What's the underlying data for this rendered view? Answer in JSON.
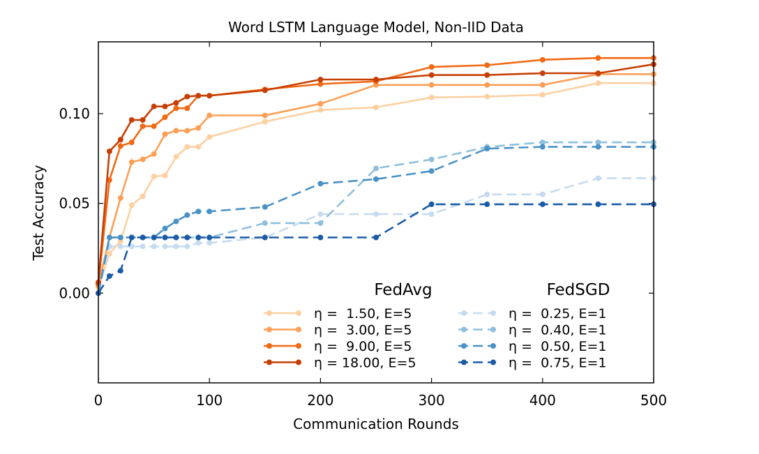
{
  "chart_data": {
    "type": "line",
    "title": "Word LSTM Language Model, Non-IID Data",
    "xlabel": "Communication Rounds",
    "ylabel": "Test Accuracy",
    "xlim": [
      0,
      500
    ],
    "ylim": [
      -0.05,
      0.14
    ],
    "xticks": [
      0,
      100,
      200,
      300,
      400,
      500
    ],
    "xtick_labels": [
      "0",
      "100",
      "200",
      "300",
      "400",
      "500"
    ],
    "yticks": [
      0.0,
      0.05,
      0.1
    ],
    "ytick_labels": [
      "0.00",
      "0.05",
      "0.10"
    ],
    "grid": false,
    "legend_groups": [
      {
        "heading": "FedAvg",
        "series": [
          {
            "name": "η =  1.50, E=5",
            "color": "#fdd0a2",
            "dashed": false,
            "points": [
              [
                0,
                0.003
              ],
              [
                10,
                0.022
              ],
              [
                20,
                0.029
              ],
              [
                30,
                0.049
              ],
              [
                40,
                0.054
              ],
              [
                50,
                0.065
              ],
              [
                60,
                0.0655
              ],
              [
                70,
                0.076
              ],
              [
                80,
                0.0815
              ],
              [
                90,
                0.0815
              ],
              [
                100,
                0.087
              ],
              [
                150,
                0.0955
              ],
              [
                200,
                0.102
              ],
              [
                250,
                0.1035
              ],
              [
                300,
                0.109
              ],
              [
                350,
                0.1095
              ],
              [
                400,
                0.1105
              ],
              [
                450,
                0.117
              ],
              [
                500,
                0.117
              ]
            ]
          },
          {
            "name": "η =  3.00, E=5",
            "color": "#fd9f56",
            "dashed": false,
            "points": [
              [
                0,
                0.004
              ],
              [
                10,
                0.031
              ],
              [
                20,
                0.053
              ],
              [
                30,
                0.073
              ],
              [
                40,
                0.0745
              ],
              [
                50,
                0.0775
              ],
              [
                60,
                0.0885
              ],
              [
                70,
                0.0905
              ],
              [
                80,
                0.0905
              ],
              [
                90,
                0.092
              ],
              [
                100,
                0.099
              ],
              [
                150,
                0.099
              ],
              [
                200,
                0.1055
              ],
              [
                250,
                0.116
              ],
              [
                300,
                0.116
              ],
              [
                350,
                0.116
              ],
              [
                400,
                0.116
              ],
              [
                450,
                0.122
              ],
              [
                500,
                0.122
              ]
            ]
          },
          {
            "name": "η =  9.00, E=5",
            "color": "#f16913",
            "dashed": false,
            "points": [
              [
                0,
                0.005
              ],
              [
                10,
                0.063
              ],
              [
                20,
                0.082
              ],
              [
                30,
                0.084
              ],
              [
                40,
                0.093
              ],
              [
                50,
                0.093
              ],
              [
                60,
                0.098
              ],
              [
                70,
                0.103
              ],
              [
                80,
                0.103
              ],
              [
                90,
                0.11
              ],
              [
                100,
                0.11
              ],
              [
                150,
                0.1135
              ],
              [
                200,
                0.1165
              ],
              [
                250,
                0.118
              ],
              [
                300,
                0.126
              ],
              [
                350,
                0.127
              ],
              [
                400,
                0.13
              ],
              [
                450,
                0.131
              ],
              [
                500,
                0.131
              ]
            ]
          },
          {
            "name": "η = 18.00, E=5",
            "color": "#c63f04",
            "dashed": false,
            "points": [
              [
                0,
                0.006
              ],
              [
                10,
                0.079
              ],
              [
                20,
                0.0855
              ],
              [
                30,
                0.0965
              ],
              [
                40,
                0.0965
              ],
              [
                50,
                0.104
              ],
              [
                60,
                0.104
              ],
              [
                70,
                0.106
              ],
              [
                80,
                0.1095
              ],
              [
                90,
                0.11
              ],
              [
                100,
                0.11
              ],
              [
                150,
                0.113
              ],
              [
                200,
                0.119
              ],
              [
                250,
                0.119
              ],
              [
                300,
                0.1215
              ],
              [
                350,
                0.1215
              ],
              [
                400,
                0.1225
              ],
              [
                450,
                0.1225
              ],
              [
                500,
                0.1275
              ]
            ]
          }
        ]
      },
      {
        "heading": "FedSGD",
        "series": [
          {
            "name": "η =  0.25, E=1",
            "color": "#c6dbef",
            "dashed": true,
            "points": [
              [
                0,
                0.0
              ],
              [
                10,
                0.026
              ],
              [
                20,
                0.026
              ],
              [
                30,
                0.026
              ],
              [
                40,
                0.026
              ],
              [
                50,
                0.026
              ],
              [
                60,
                0.026
              ],
              [
                70,
                0.026
              ],
              [
                80,
                0.026
              ],
              [
                90,
                0.028
              ],
              [
                100,
                0.028
              ],
              [
                150,
                0.031
              ],
              [
                200,
                0.044
              ],
              [
                250,
                0.044
              ],
              [
                300,
                0.044
              ],
              [
                350,
                0.055
              ],
              [
                400,
                0.055
              ],
              [
                450,
                0.064
              ],
              [
                500,
                0.064
              ]
            ]
          },
          {
            "name": "η =  0.40, E=1",
            "color": "#8ebfdd",
            "dashed": true,
            "points": [
              [
                0,
                0.0
              ],
              [
                10,
                0.031
              ],
              [
                20,
                0.031
              ],
              [
                30,
                0.031
              ],
              [
                40,
                0.031
              ],
              [
                50,
                0.031
              ],
              [
                60,
                0.031
              ],
              [
                70,
                0.031
              ],
              [
                80,
                0.031
              ],
              [
                90,
                0.031
              ],
              [
                100,
                0.031
              ],
              [
                150,
                0.039
              ],
              [
                200,
                0.039
              ],
              [
                250,
                0.0695
              ],
              [
                300,
                0.0745
              ],
              [
                350,
                0.0815
              ],
              [
                400,
                0.084
              ],
              [
                450,
                0.084
              ],
              [
                500,
                0.084
              ]
            ]
          },
          {
            "name": "η =  0.50, E=1",
            "color": "#4a91c6",
            "dashed": true,
            "points": [
              [
                0,
                0.0
              ],
              [
                10,
                0.031
              ],
              [
                20,
                0.031
              ],
              [
                30,
                0.031
              ],
              [
                40,
                0.031
              ],
              [
                50,
                0.031
              ],
              [
                60,
                0.036
              ],
              [
                70,
                0.04
              ],
              [
                80,
                0.0435
              ],
              [
                90,
                0.0455
              ],
              [
                100,
                0.0455
              ],
              [
                150,
                0.048
              ],
              [
                200,
                0.061
              ],
              [
                250,
                0.0635
              ],
              [
                300,
                0.068
              ],
              [
                350,
                0.0805
              ],
              [
                400,
                0.0815
              ],
              [
                450,
                0.0815
              ],
              [
                500,
                0.0815
              ]
            ]
          },
          {
            "name": "η =  0.75, E=1",
            "color": "#1a5ba6",
            "dashed": true,
            "points": [
              [
                0,
                0.0
              ],
              [
                10,
                0.0095
              ],
              [
                20,
                0.0125
              ],
              [
                30,
                0.031
              ],
              [
                40,
                0.031
              ],
              [
                50,
                0.031
              ],
              [
                60,
                0.031
              ],
              [
                70,
                0.031
              ],
              [
                80,
                0.031
              ],
              [
                90,
                0.031
              ],
              [
                100,
                0.031
              ],
              [
                150,
                0.031
              ],
              [
                200,
                0.031
              ],
              [
                250,
                0.031
              ],
              [
                300,
                0.0495
              ],
              [
                350,
                0.0495
              ],
              [
                400,
                0.0495
              ],
              [
                450,
                0.0495
              ],
              [
                500,
                0.0495
              ]
            ]
          }
        ]
      }
    ]
  }
}
